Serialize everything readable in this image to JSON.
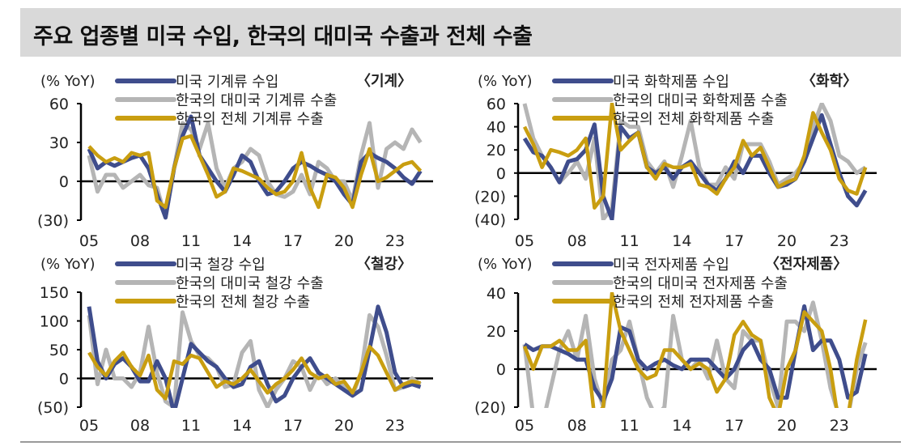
{
  "title": "주요 업종별 미국 수입, 한국의 대미국 수출과 전체 수출",
  "colors": {
    "us_imports": "#3f4d8c",
    "kr_exports_to_us": "#b5b5b5",
    "kr_total_exports": "#c99e10"
  },
  "chart_data": [
    {
      "type": "line",
      "title": "〈기계〉",
      "ylabel": "(% YoY)",
      "ylim": [
        -30,
        60
      ],
      "yticks": [
        60,
        30,
        0,
        -30
      ],
      "ytick_labels": [
        "60",
        "30",
        "0",
        "(30)"
      ],
      "xticks": [
        2005,
        2008,
        2011,
        2014,
        2017,
        2020,
        2023
      ],
      "xtick_labels": [
        "05",
        "08",
        "11",
        "14",
        "17",
        "20",
        "23"
      ],
      "x": [
        2005,
        2005.5,
        2006,
        2006.5,
        2007,
        2007.5,
        2008,
        2008.5,
        2009,
        2009.5,
        2010,
        2010.5,
        2011,
        2011.5,
        2012,
        2012.5,
        2013,
        2013.5,
        2014,
        2014.5,
        2015,
        2015.5,
        2016,
        2016.5,
        2017,
        2017.5,
        2018,
        2018.5,
        2019,
        2019.5,
        2020,
        2020.5,
        2021,
        2021.5,
        2022,
        2022.5,
        2023,
        2023.5,
        2024,
        2024.5
      ],
      "series": [
        {
          "name": "미국 기계류 수입",
          "color": "#3f4d8c",
          "values": [
            25,
            10,
            15,
            12,
            15,
            18,
            20,
            10,
            -10,
            -28,
            10,
            35,
            50,
            20,
            10,
            0,
            -8,
            5,
            20,
            15,
            0,
            -10,
            -8,
            0,
            10,
            15,
            12,
            8,
            5,
            0,
            -10,
            -18,
            15,
            22,
            18,
            15,
            10,
            3,
            -2,
            8
          ]
        },
        {
          "name": "한국의 대미국 기계류 수출",
          "color": "#b5b5b5",
          "values": [
            20,
            -8,
            5,
            5,
            -5,
            0,
            5,
            -3,
            -5,
            -28,
            10,
            45,
            40,
            25,
            45,
            10,
            -5,
            10,
            15,
            25,
            20,
            0,
            -10,
            -12,
            -8,
            5,
            -10,
            15,
            10,
            0,
            0,
            -15,
            20,
            45,
            -5,
            25,
            30,
            25,
            40,
            30
          ]
        },
        {
          "name": "한국의 전체 기계류 수출",
          "color": "#c99e10",
          "values": [
            27,
            20,
            15,
            18,
            15,
            22,
            20,
            22,
            -15,
            -20,
            10,
            33,
            35,
            20,
            5,
            -12,
            -8,
            10,
            8,
            5,
            2,
            -5,
            -10,
            -8,
            0,
            22,
            -5,
            -20,
            5,
            3,
            -5,
            -20,
            5,
            25,
            0,
            3,
            8,
            13,
            15,
            8
          ]
        }
      ]
    },
    {
      "type": "line",
      "title": "〈화학〉",
      "ylabel": "(% YoY)",
      "ylim": [
        -40,
        60
      ],
      "yticks": [
        60,
        40,
        20,
        0,
        -20,
        -40
      ],
      "ytick_labels": [
        "60",
        "40",
        "20",
        "0",
        "(20)",
        "(40)"
      ],
      "xticks": [
        2005,
        2008,
        2011,
        2014,
        2017,
        2020,
        2023
      ],
      "xtick_labels": [
        "05",
        "08",
        "11",
        "14",
        "17",
        "20",
        "23"
      ],
      "x": [
        2005,
        2005.5,
        2006,
        2006.5,
        2007,
        2007.5,
        2008,
        2008.5,
        2009,
        2009.5,
        2010,
        2010.5,
        2011,
        2011.5,
        2012,
        2012.5,
        2013,
        2013.5,
        2014,
        2014.5,
        2015,
        2015.5,
        2016,
        2016.5,
        2017,
        2017.5,
        2018,
        2018.5,
        2019,
        2019.5,
        2020,
        2020.5,
        2021,
        2021.5,
        2022,
        2022.5,
        2023,
        2023.5,
        2024,
        2024.5
      ],
      "series": [
        {
          "name": "미국 화학제품 수입",
          "color": "#3f4d8c",
          "values": [
            30,
            18,
            15,
            5,
            -8,
            10,
            12,
            20,
            42,
            -20,
            -40,
            40,
            30,
            35,
            5,
            0,
            5,
            -5,
            5,
            10,
            0,
            -10,
            -15,
            -5,
            10,
            0,
            15,
            15,
            0,
            -12,
            -10,
            -5,
            10,
            30,
            50,
            25,
            0,
            -20,
            -28,
            -15
          ]
        },
        {
          "name": "한국의 대미국 화학제품 수출",
          "color": "#b5b5b5",
          "values": [
            60,
            30,
            15,
            5,
            -8,
            0,
            10,
            -5,
            30,
            -40,
            -30,
            45,
            40,
            40,
            10,
            0,
            10,
            -12,
            15,
            45,
            5,
            -10,
            -10,
            5,
            -5,
            25,
            25,
            25,
            10,
            -10,
            -5,
            0,
            10,
            40,
            60,
            45,
            15,
            10,
            0,
            5
          ]
        },
        {
          "name": "한국의 전체 화학제품 수출",
          "color": "#c99e10",
          "values": [
            40,
            25,
            5,
            20,
            18,
            15,
            20,
            30,
            -30,
            -20,
            60,
            20,
            28,
            35,
            5,
            -5,
            8,
            5,
            5,
            8,
            -10,
            -12,
            -18,
            -5,
            5,
            28,
            15,
            22,
            5,
            -12,
            -8,
            -5,
            15,
            52,
            35,
            20,
            -5,
            -15,
            -18,
            5
          ]
        }
      ]
    },
    {
      "type": "line",
      "title": "〈철강〉",
      "ylabel": "(% YoY)",
      "ylim": [
        -50,
        150
      ],
      "yticks": [
        150,
        100,
        50,
        0,
        -50
      ],
      "ytick_labels": [
        "150",
        "100",
        "50",
        "0",
        "(50)"
      ],
      "xticks": [
        2005,
        2008,
        2011,
        2014,
        2017,
        2020,
        2023
      ],
      "xtick_labels": [
        "05",
        "08",
        "11",
        "14",
        "17",
        "20",
        "23"
      ],
      "x": [
        2005,
        2005.5,
        2006,
        2006.5,
        2007,
        2007.5,
        2008,
        2008.5,
        2009,
        2009.5,
        2010,
        2010.5,
        2011,
        2011.5,
        2012,
        2012.5,
        2013,
        2013.5,
        2014,
        2014.5,
        2015,
        2015.5,
        2016,
        2016.5,
        2017,
        2017.5,
        2018,
        2018.5,
        2019,
        2019.5,
        2020,
        2020.5,
        2021,
        2021.5,
        2022,
        2022.5,
        2023,
        2023.5,
        2024,
        2024.5
      ],
      "series": [
        {
          "name": "미국 철강 수입",
          "color": "#3f4d8c",
          "values": [
            125,
            30,
            0,
            25,
            35,
            20,
            -5,
            -5,
            30,
            0,
            -60,
            0,
            60,
            45,
            30,
            20,
            0,
            -15,
            -10,
            20,
            30,
            -10,
            -40,
            -30,
            0,
            20,
            35,
            10,
            0,
            -10,
            -20,
            -30,
            -20,
            50,
            125,
            80,
            10,
            -15,
            -10,
            -15
          ]
        },
        {
          "name": "한국의 대미국 철강 수출",
          "color": "#b5b5b5",
          "values": [
            110,
            -10,
            50,
            0,
            0,
            -15,
            10,
            90,
            10,
            -40,
            -50,
            115,
            65,
            40,
            35,
            20,
            -15,
            -10,
            45,
            65,
            -20,
            -50,
            -20,
            0,
            30,
            20,
            -20,
            10,
            -10,
            0,
            -15,
            -30,
            10,
            110,
            90,
            40,
            -20,
            -15,
            0,
            -10
          ]
        },
        {
          "name": "한국의 전체 철강 수출",
          "color": "#c99e10",
          "values": [
            45,
            20,
            5,
            30,
            45,
            20,
            5,
            40,
            -20,
            -35,
            30,
            25,
            40,
            35,
            10,
            -15,
            -5,
            -10,
            0,
            15,
            -5,
            -25,
            -10,
            0,
            15,
            35,
            10,
            0,
            5,
            -10,
            -5,
            -25,
            10,
            55,
            40,
            10,
            -20,
            -10,
            -5,
            -8
          ]
        }
      ]
    },
    {
      "type": "line",
      "title": "〈전자제품〉",
      "ylabel": "(% YoY)",
      "ylim": [
        -20,
        40
      ],
      "yticks": [
        40,
        20,
        0,
        -20
      ],
      "ytick_labels": [
        "40",
        "20",
        "0",
        "(20)"
      ],
      "xticks": [
        2005,
        2008,
        2011,
        2014,
        2017,
        2020,
        2023
      ],
      "xtick_labels": [
        "05",
        "08",
        "11",
        "14",
        "17",
        "20",
        "23"
      ],
      "x": [
        2005,
        2005.5,
        2006,
        2006.5,
        2007,
        2007.5,
        2008,
        2008.5,
        2009,
        2009.5,
        2010,
        2010.5,
        2011,
        2011.5,
        2012,
        2012.5,
        2013,
        2013.5,
        2014,
        2014.5,
        2015,
        2015.5,
        2016,
        2016.5,
        2017,
        2017.5,
        2018,
        2018.5,
        2019,
        2019.5,
        2020,
        2020.5,
        2021,
        2021.5,
        2022,
        2022.5,
        2023,
        2023.5,
        2024,
        2024.5
      ],
      "series": [
        {
          "name": "미국 전자제품 수입",
          "color": "#3f4d8c",
          "values": [
            13,
            10,
            12,
            12,
            10,
            8,
            5,
            5,
            -10,
            -17,
            -5,
            22,
            20,
            5,
            0,
            3,
            5,
            2,
            0,
            5,
            5,
            5,
            0,
            -5,
            0,
            10,
            15,
            5,
            0,
            -15,
            -15,
            10,
            33,
            10,
            15,
            15,
            5,
            -15,
            -12,
            8
          ]
        },
        {
          "name": "한국의 대미국 전자제품 수출",
          "color": "#b5b5b5",
          "values": [
            13,
            -25,
            -30,
            -10,
            10,
            20,
            5,
            28,
            -5,
            -20,
            5,
            10,
            25,
            5,
            -15,
            -25,
            -20,
            28,
            5,
            0,
            5,
            -5,
            15,
            -5,
            -10,
            20,
            15,
            15,
            -5,
            -20,
            25,
            25,
            20,
            35,
            15,
            -10,
            -25,
            -25,
            0,
            14
          ]
        },
        {
          "name": "한국의 전체 전자제품 수출",
          "color": "#c99e10",
          "values": [
            12,
            0,
            12,
            12,
            15,
            10,
            10,
            15,
            -25,
            -20,
            40,
            20,
            10,
            0,
            -5,
            -3,
            10,
            10,
            5,
            0,
            3,
            0,
            -12,
            -5,
            18,
            25,
            18,
            15,
            -15,
            -25,
            0,
            10,
            30,
            25,
            20,
            0,
            -30,
            -25,
            5,
            26
          ]
        }
      ]
    }
  ]
}
